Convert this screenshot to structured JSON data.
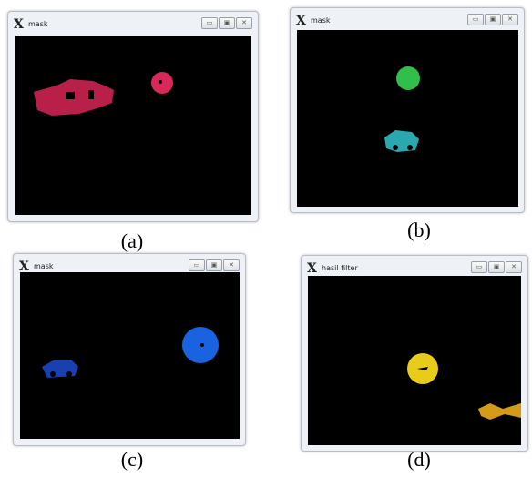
{
  "panels": [
    {
      "window_title": "mask",
      "caption": "(a)"
    },
    {
      "window_title": "mask",
      "caption": "(b)"
    },
    {
      "window_title": "mask",
      "caption": "(c)"
    },
    {
      "window_title": "hasil filter",
      "caption": "(d)"
    }
  ]
}
